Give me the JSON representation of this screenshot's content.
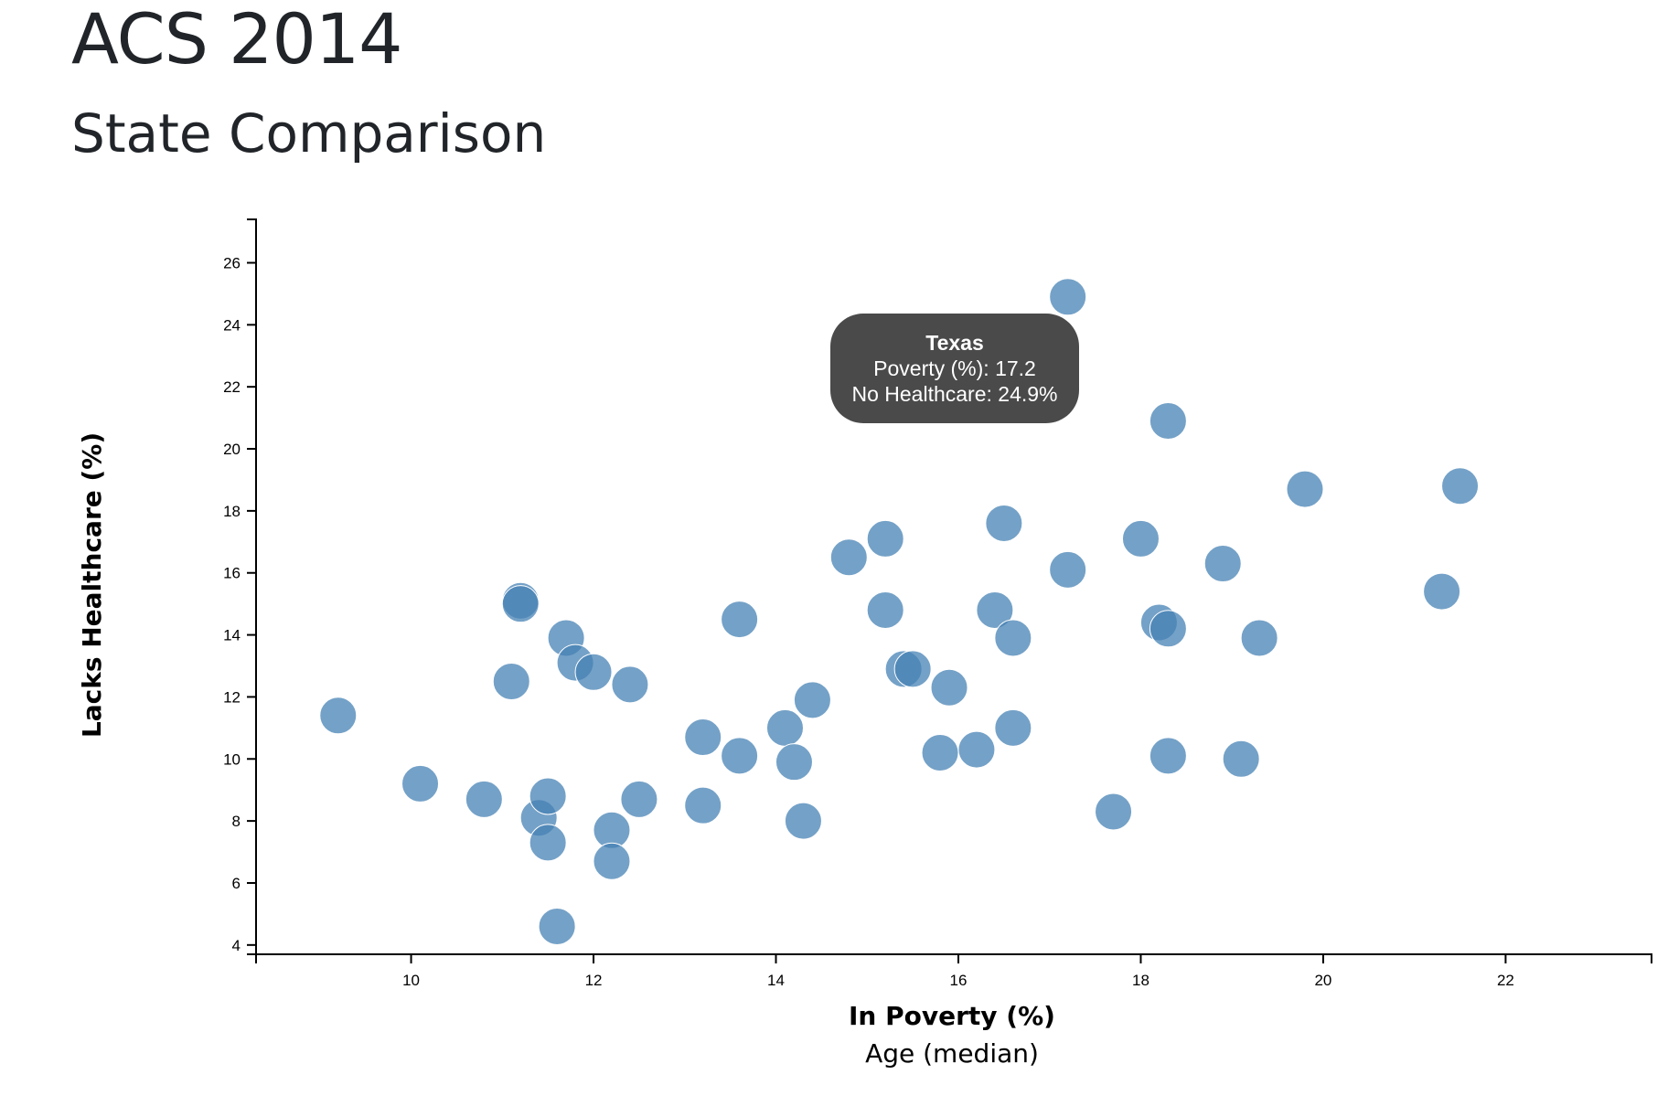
{
  "header": {
    "title": "ACS 2014",
    "subtitle": "State Comparison"
  },
  "colors": {
    "point": "#4682b4",
    "tooltip_bg": "#4a4a4a",
    "axis": "#000000"
  },
  "chart_data": {
    "type": "scatter",
    "xlabel": "In Poverty (%)",
    "xlabel_alt": "Age (median)",
    "ylabel": "Lacks Healthcare (%)",
    "xlim": [
      8.3,
      23.6
    ],
    "ylim": [
      3.7,
      27.4
    ],
    "xticks": [
      10,
      12,
      14,
      16,
      18,
      20,
      22
    ],
    "yticks": [
      4,
      6,
      8,
      10,
      12,
      14,
      16,
      18,
      20,
      22,
      24,
      26
    ],
    "points": [
      {
        "x": 9.2,
        "y": 11.4
      },
      {
        "x": 10.1,
        "y": 9.2
      },
      {
        "x": 10.8,
        "y": 8.7
      },
      {
        "x": 11.1,
        "y": 12.5
      },
      {
        "x": 11.2,
        "y": 15.1
      },
      {
        "x": 11.2,
        "y": 15.0
      },
      {
        "x": 11.4,
        "y": 8.1
      },
      {
        "x": 11.5,
        "y": 8.8
      },
      {
        "x": 11.5,
        "y": 7.3
      },
      {
        "x": 11.6,
        "y": 4.6
      },
      {
        "x": 11.7,
        "y": 13.9
      },
      {
        "x": 11.8,
        "y": 13.1
      },
      {
        "x": 12.0,
        "y": 12.8
      },
      {
        "x": 12.2,
        "y": 7.7
      },
      {
        "x": 12.2,
        "y": 6.7
      },
      {
        "x": 12.4,
        "y": 12.4
      },
      {
        "x": 12.5,
        "y": 8.7
      },
      {
        "x": 13.2,
        "y": 10.7
      },
      {
        "x": 13.2,
        "y": 8.5
      },
      {
        "x": 13.6,
        "y": 14.5
      },
      {
        "x": 13.6,
        "y": 10.1
      },
      {
        "x": 14.1,
        "y": 11.0
      },
      {
        "x": 14.2,
        "y": 9.9
      },
      {
        "x": 14.3,
        "y": 8.0
      },
      {
        "x": 14.4,
        "y": 11.9
      },
      {
        "x": 14.8,
        "y": 16.5
      },
      {
        "x": 15.2,
        "y": 17.1
      },
      {
        "x": 15.2,
        "y": 14.8
      },
      {
        "x": 15.4,
        "y": 12.9
      },
      {
        "x": 15.5,
        "y": 12.9
      },
      {
        "x": 15.8,
        "y": 10.2
      },
      {
        "x": 15.9,
        "y": 12.3
      },
      {
        "x": 16.2,
        "y": 10.3
      },
      {
        "x": 16.4,
        "y": 14.8
      },
      {
        "x": 16.5,
        "y": 17.6
      },
      {
        "x": 16.6,
        "y": 13.9
      },
      {
        "x": 16.6,
        "y": 11.0
      },
      {
        "x": 17.2,
        "y": 24.9
      },
      {
        "x": 17.2,
        "y": 16.1
      },
      {
        "x": 17.7,
        "y": 8.3
      },
      {
        "x": 18.0,
        "y": 17.1
      },
      {
        "x": 18.2,
        "y": 14.4
      },
      {
        "x": 18.3,
        "y": 20.9
      },
      {
        "x": 18.3,
        "y": 14.2
      },
      {
        "x": 18.3,
        "y": 10.1
      },
      {
        "x": 18.9,
        "y": 16.3
      },
      {
        "x": 19.1,
        "y": 10.0
      },
      {
        "x": 19.3,
        "y": 13.9
      },
      {
        "x": 19.8,
        "y": 18.7
      },
      {
        "x": 21.3,
        "y": 15.4
      },
      {
        "x": 21.5,
        "y": 18.8
      }
    ],
    "tooltip": {
      "state": "Texas",
      "line1": "Poverty (%): 17.2",
      "line2": "No Healthcare: 24.9%",
      "x": 17.2,
      "y": 24.9
    }
  }
}
